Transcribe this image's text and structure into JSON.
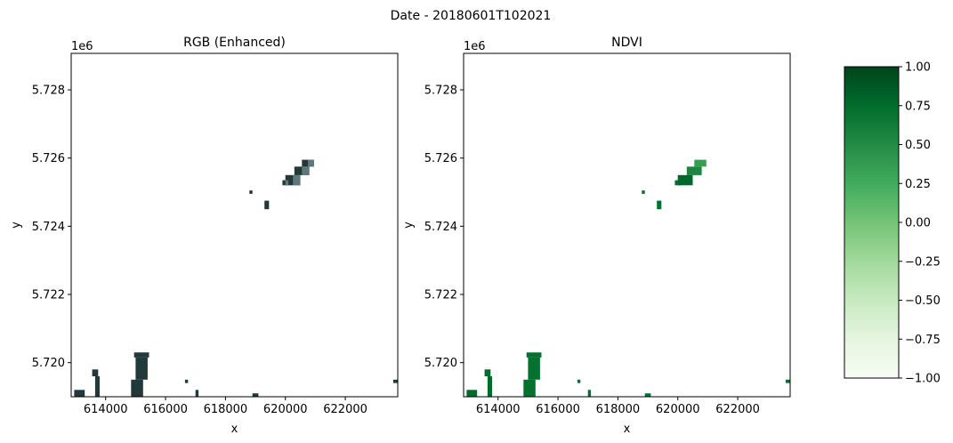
{
  "figure": {
    "suptitle": "Date - 20180601T102021"
  },
  "chart_data": [
    {
      "type": "heatmap",
      "title": "RGB (Enhanced)",
      "xlabel": "x",
      "ylabel": "y",
      "offset_label": "1e6",
      "x_ticks": [
        614000,
        616000,
        618000,
        620000,
        622000
      ],
      "y_ticks": [
        5.72,
        5.722,
        5.724,
        5.726,
        5.728
      ],
      "xlim": [
        612850,
        623750
      ],
      "ylim": [
        5.719,
        5.72907
      ],
      "grid": false,
      "patches": [
        {
          "x0": 612950,
          "x1": 613300,
          "y0": 5.719,
          "y1": 5.7192,
          "value": "dark"
        },
        {
          "x0": 613550,
          "x1": 613750,
          "y0": 5.7196,
          "y1": 5.7198,
          "value": "dark"
        },
        {
          "x0": 613650,
          "x1": 613800,
          "y0": 5.719,
          "y1": 5.7196,
          "value": "dark"
        },
        {
          "x0": 614850,
          "x1": 615250,
          "y0": 5.719,
          "y1": 5.7195,
          "value": "dark"
        },
        {
          "x0": 615000,
          "x1": 615400,
          "y0": 5.7195,
          "y1": 5.72015,
          "value": "dark"
        },
        {
          "x0": 614950,
          "x1": 615450,
          "y0": 5.72015,
          "y1": 5.7203,
          "value": "dark"
        },
        {
          "x0": 616650,
          "x1": 616750,
          "y0": 5.7194,
          "y1": 5.7195,
          "value": "dark"
        },
        {
          "x0": 617000,
          "x1": 617100,
          "y0": 5.719,
          "y1": 5.7192,
          "value": "dark"
        },
        {
          "x0": 618900,
          "x1": 619100,
          "y0": 5.719,
          "y1": 5.7191,
          "value": "dark"
        },
        {
          "x0": 623600,
          "x1": 623750,
          "y0": 5.7194,
          "y1": 5.7195,
          "value": "dark"
        },
        {
          "x0": 619300,
          "x1": 619450,
          "y0": 5.7245,
          "y1": 5.72475,
          "value": "dark"
        },
        {
          "x0": 618800,
          "x1": 618900,
          "y0": 5.72495,
          "y1": 5.72505,
          "value": "dark"
        },
        {
          "x0": 619900,
          "x1": 620100,
          "y0": 5.7252,
          "y1": 5.72535,
          "value": "dark"
        },
        {
          "x0": 620000,
          "x1": 620500,
          "y0": 5.7252,
          "y1": 5.7255,
          "value": "dark"
        },
        {
          "x0": 620300,
          "x1": 620800,
          "y0": 5.7255,
          "y1": 5.72575,
          "value": "dark"
        },
        {
          "x0": 620550,
          "x1": 620950,
          "y0": 5.72575,
          "y1": 5.72595,
          "value": "dark"
        }
      ]
    },
    {
      "type": "heatmap",
      "title": "NDVI",
      "xlabel": "x",
      "ylabel": "y",
      "offset_label": "1e6",
      "x_ticks": [
        614000,
        616000,
        618000,
        620000,
        622000
      ],
      "y_ticks": [
        5.72,
        5.722,
        5.724,
        5.726,
        5.728
      ],
      "xlim": [
        612850,
        623750
      ],
      "ylim": [
        5.719,
        5.72907
      ],
      "grid": false,
      "patches": [
        {
          "x0": 612950,
          "x1": 613300,
          "y0": 5.719,
          "y1": 5.7192,
          "value": 0.75
        },
        {
          "x0": 613550,
          "x1": 613750,
          "y0": 5.7196,
          "y1": 5.7198,
          "value": 0.75
        },
        {
          "x0": 613650,
          "x1": 613800,
          "y0": 5.719,
          "y1": 5.7196,
          "value": 0.75
        },
        {
          "x0": 614850,
          "x1": 615250,
          "y0": 5.719,
          "y1": 5.7195,
          "value": 0.72
        },
        {
          "x0": 615000,
          "x1": 615400,
          "y0": 5.7195,
          "y1": 5.72015,
          "value": 0.72
        },
        {
          "x0": 614950,
          "x1": 615450,
          "y0": 5.72015,
          "y1": 5.7203,
          "value": 0.72
        },
        {
          "x0": 616650,
          "x1": 616750,
          "y0": 5.7194,
          "y1": 5.7195,
          "value": 0.72
        },
        {
          "x0": 617000,
          "x1": 617100,
          "y0": 5.719,
          "y1": 5.7192,
          "value": 0.72
        },
        {
          "x0": 618900,
          "x1": 619100,
          "y0": 5.719,
          "y1": 5.7191,
          "value": 0.72
        },
        {
          "x0": 623600,
          "x1": 623750,
          "y0": 5.7194,
          "y1": 5.7195,
          "value": 0.72
        },
        {
          "x0": 619300,
          "x1": 619450,
          "y0": 5.7245,
          "y1": 5.72475,
          "value": 0.72
        },
        {
          "x0": 618800,
          "x1": 618900,
          "y0": 5.72495,
          "y1": 5.72505,
          "value": 0.72
        },
        {
          "x0": 619900,
          "x1": 620100,
          "y0": 5.7252,
          "y1": 5.72535,
          "value": 0.72
        },
        {
          "x0": 620000,
          "x1": 620500,
          "y0": 5.7252,
          "y1": 5.7255,
          "value": 0.78
        },
        {
          "x0": 620300,
          "x1": 620800,
          "y0": 5.7255,
          "y1": 5.72575,
          "value": 0.55
        },
        {
          "x0": 620550,
          "x1": 620950,
          "y0": 5.72575,
          "y1": 5.72595,
          "value": 0.35
        }
      ]
    }
  ],
  "colorbar": {
    "colormap": "Greens",
    "range": [
      -1.0,
      1.0
    ],
    "tick_values": [
      1.0,
      0.75,
      0.5,
      0.25,
      0.0,
      -0.25,
      -0.5,
      -0.75,
      -1.0
    ],
    "tick_labels": [
      "1.00",
      "0.75",
      "0.50",
      "0.25",
      "0.00",
      "−0.25",
      "−0.50",
      "−0.75",
      "−1.00"
    ]
  },
  "colors": {
    "rgb_dark": "#21393a",
    "rgb_mid": "#3e5558",
    "rgb_light": "#6b8186",
    "greens_low": "#f7fcf5",
    "greens_mid": "#74c476",
    "greens_high": "#00441b"
  }
}
